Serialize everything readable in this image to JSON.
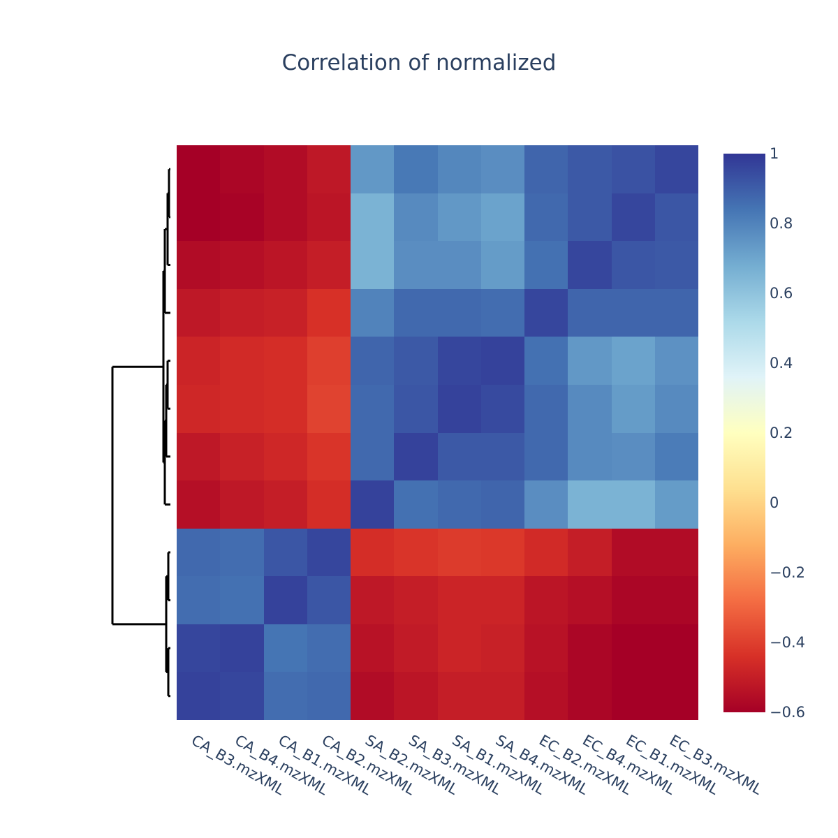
{
  "chart_data": {
    "type": "heatmap",
    "title": "Correlation of normalized",
    "x_labels": [
      "CA_B3.mzXML",
      "CA_B4.mzXML",
      "CA_B1.mzXML",
      "CA_B2.mzXML",
      "SA_B2.mzXML",
      "SA_B3.mzXML",
      "SA_B1.mzXML",
      "SA_B4.mzXML",
      "EC_B2.mzXML",
      "EC_B4.mzXML",
      "EC_B1.mzXML",
      "EC_B3.mzXML"
    ],
    "y_labels_shown": false,
    "values": [
      [
        -0.6,
        -0.58,
        -0.56,
        -0.52,
        0.74,
        0.83,
        0.79,
        0.77,
        0.88,
        0.91,
        0.93,
        0.96
      ],
      [
        -0.6,
        -0.59,
        -0.56,
        -0.53,
        0.66,
        0.78,
        0.74,
        0.71,
        0.87,
        0.91,
        0.96,
        0.92
      ],
      [
        -0.56,
        -0.55,
        -0.53,
        -0.5,
        0.66,
        0.77,
        0.77,
        0.73,
        0.85,
        0.96,
        0.92,
        0.91
      ],
      [
        -0.52,
        -0.5,
        -0.49,
        -0.44,
        0.8,
        0.87,
        0.87,
        0.86,
        0.96,
        0.88,
        0.88,
        0.88
      ],
      [
        -0.48,
        -0.46,
        -0.45,
        -0.4,
        0.88,
        0.91,
        0.96,
        0.97,
        0.85,
        0.74,
        0.71,
        0.76
      ],
      [
        -0.47,
        -0.46,
        -0.45,
        -0.39,
        0.87,
        0.92,
        0.97,
        0.95,
        0.87,
        0.78,
        0.73,
        0.78
      ],
      [
        -0.52,
        -0.49,
        -0.47,
        -0.43,
        0.87,
        0.97,
        0.91,
        0.91,
        0.87,
        0.78,
        0.77,
        0.82
      ],
      [
        -0.55,
        -0.52,
        -0.5,
        -0.45,
        0.97,
        0.85,
        0.87,
        0.88,
        0.77,
        0.66,
        0.66,
        0.73
      ],
      [
        0.87,
        0.86,
        0.92,
        0.96,
        -0.45,
        -0.43,
        -0.41,
        -0.42,
        -0.46,
        -0.5,
        -0.56,
        -0.56
      ],
      [
        0.86,
        0.85,
        0.97,
        0.92,
        -0.52,
        -0.5,
        -0.48,
        -0.48,
        -0.53,
        -0.55,
        -0.58,
        -0.58
      ],
      [
        0.96,
        0.97,
        0.84,
        0.86,
        -0.54,
        -0.51,
        -0.48,
        -0.49,
        -0.54,
        -0.58,
        -0.62,
        -0.62
      ],
      [
        0.97,
        0.96,
        0.86,
        0.87,
        -0.56,
        -0.53,
        -0.5,
        -0.5,
        -0.55,
        -0.58,
        -0.61,
        -0.62
      ]
    ],
    "zmin": -0.6,
    "zmax": 1,
    "colorscale": [
      [
        0.0,
        "#a50026"
      ],
      [
        0.1,
        "#d73027"
      ],
      [
        0.2,
        "#f46d43"
      ],
      [
        0.3,
        "#fdae61"
      ],
      [
        0.4,
        "#fee090"
      ],
      [
        0.5,
        "#ffffbf"
      ],
      [
        0.6,
        "#e0f3f8"
      ],
      [
        0.7,
        "#abd9e9"
      ],
      [
        0.8,
        "#74add1"
      ],
      [
        0.9,
        "#4575b4"
      ],
      [
        1.0,
        "#313695"
      ]
    ],
    "colorbar_ticks": [
      1,
      0.8,
      0.6,
      0.4,
      0.2,
      0,
      -0.2,
      -0.4,
      -0.6
    ],
    "colorbar_tick_labels": [
      "1",
      "0.8",
      "0.6",
      "0.4",
      "0.2",
      "0",
      "−0.2",
      "−0.4",
      "−0.6"
    ],
    "row_dendrogram": true,
    "dendrogram_color": "#000000",
    "text_color": "#2a3f5f"
  }
}
